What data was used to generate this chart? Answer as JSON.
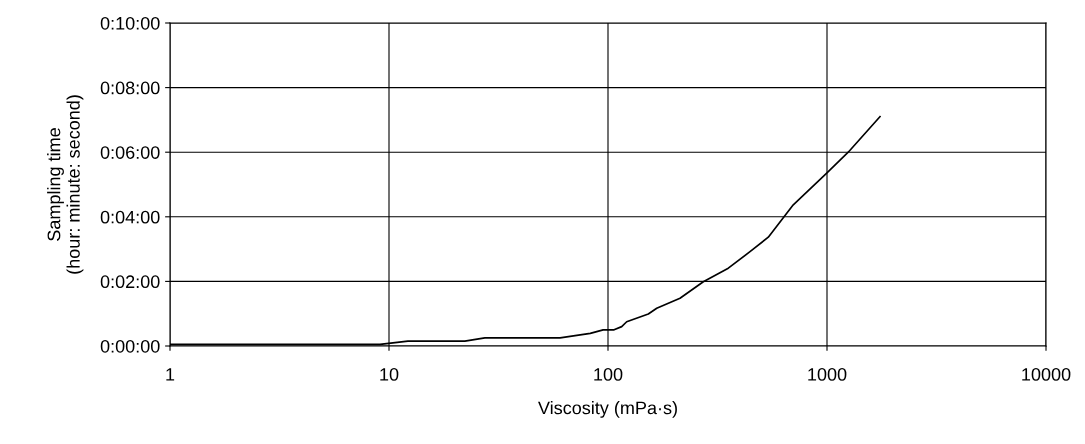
{
  "chart_data": {
    "type": "line",
    "xlabel": "Viscosity (mPa·s)",
    "ylabel": "Sampling time\n(hour: minute: second)",
    "x": [
      1,
      9.1,
      12.2,
      22.2,
      27.4,
      60.4,
      83,
      95,
      106.6,
      115.5,
      121.7,
      152.8,
      166.9,
      213.2,
      272.4,
      354.2,
      445,
      539.5,
      701.5,
      997,
      1250,
      1746
    ],
    "series": [
      {
        "color": "#000000",
        "values": [
          0.05,
          0.05,
          0.15,
          0.15,
          0.25,
          0.25,
          0.39,
          0.5,
          0.5,
          0.6,
          0.75,
          0.99,
          1.17,
          1.48,
          1.99,
          2.41,
          2.92,
          3.37,
          4.37,
          5.35,
          6.0,
          7.1
        ]
      }
    ],
    "log": "x",
    "xlim": [
      1,
      10000
    ],
    "xticks": [
      1,
      10,
      100,
      1000,
      10000
    ],
    "ylim": [
      0,
      10
    ],
    "yticks": [
      {
        "value": 0,
        "label": "0:00:00"
      },
      {
        "value": 2,
        "label": "0:02:00"
      },
      {
        "value": 4,
        "label": "0:04:00"
      },
      {
        "value": 6,
        "label": "0:06:00"
      },
      {
        "value": 8,
        "label": "0:08:00"
      },
      {
        "value": 10,
        "label": "0:10:00"
      }
    ],
    "grid": true,
    "marker": "none",
    "line_style": "solid"
  }
}
